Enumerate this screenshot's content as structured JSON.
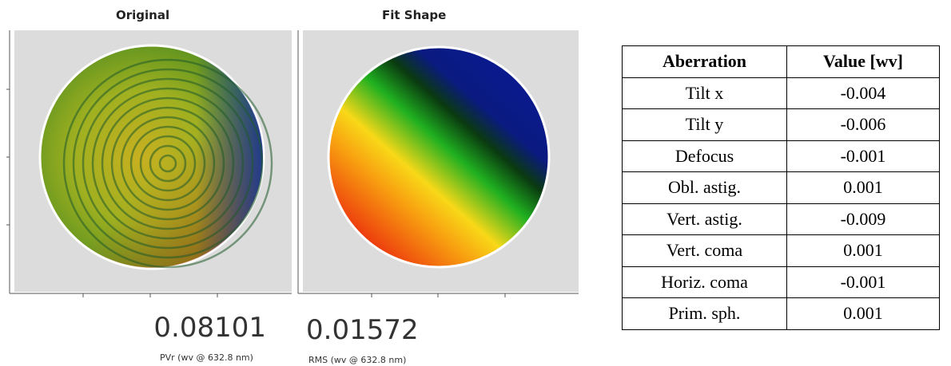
{
  "panels": [
    {
      "title": "Original",
      "value": "0.08101",
      "caption": "PVr (wv @ 632.8 nm)"
    },
    {
      "title": "Fit Shape",
      "value": "0.01572",
      "caption": "RMS (wv @ 632.8 nm)"
    }
  ],
  "table": {
    "header": [
      "Aberration",
      "Value [wv]"
    ],
    "rows": [
      [
        "Tilt x",
        "-0.004"
      ],
      [
        "Tilt y",
        "-0.006"
      ],
      [
        "Defocus",
        "-0.001"
      ],
      [
        "Obl. astig.",
        "0.001"
      ],
      [
        "Vert. astig.",
        "-0.009"
      ],
      [
        "Vert. coma",
        "0.001"
      ],
      [
        "Horiz. coma",
        "-0.001"
      ],
      [
        "Prim. sph.",
        "0.001"
      ]
    ]
  }
}
